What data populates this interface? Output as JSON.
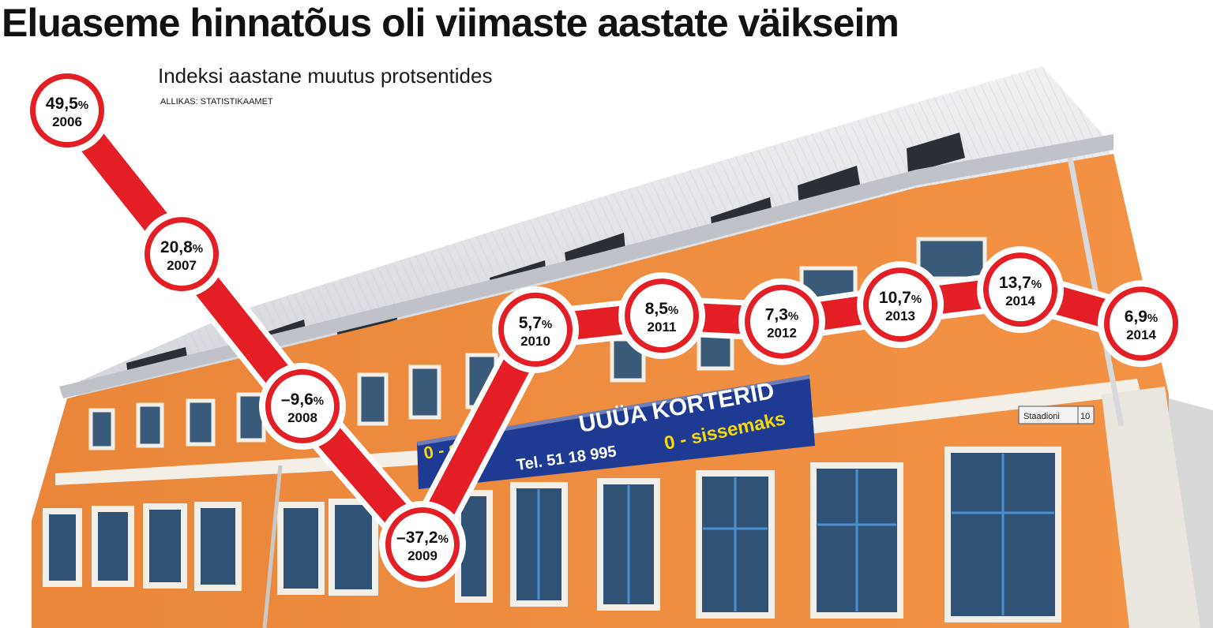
{
  "headline": "Eluaseme hinnatõus oli viimaste aastate väikseim",
  "chart_data": {
    "type": "line",
    "title": "Eluaseme hinnatõus oli viimaste aastate väikseim",
    "subtitle": "Indeksi aastane muutus protsentides",
    "source": "ALLIKAS: STATISTIKAAMET",
    "unit": "%",
    "categories": [
      "2006",
      "2007",
      "2008",
      "2009",
      "2010",
      "2011",
      "2012",
      "2013",
      "2014",
      "2014"
    ],
    "values": [
      49.5,
      20.8,
      -9.6,
      -37.2,
      5.7,
      8.5,
      7.3,
      10.7,
      13.7,
      6.9
    ],
    "value_labels": [
      "49,5",
      "20,8",
      "–9,6",
      "–37,2",
      "5,7",
      "8,5",
      "7,3",
      "10,7",
      "13,7",
      "6,9"
    ],
    "percent_sign": "%",
    "grid": false,
    "legend": "none",
    "line_color": "#e31e24"
  },
  "photo": {
    "banner_line1": "UUÜA KORTERID",
    "banner_line2_left": "0 - sis",
    "banner_line2_right": "0 - sissemaks",
    "banner_phone": "Tel. 51 18 995",
    "street_sign_name": "Staadioni",
    "street_sign_number": "10",
    "wall_color": "#f08a3c",
    "roof_color": "#e4e6ea",
    "banner_color": "#1f3a93"
  }
}
